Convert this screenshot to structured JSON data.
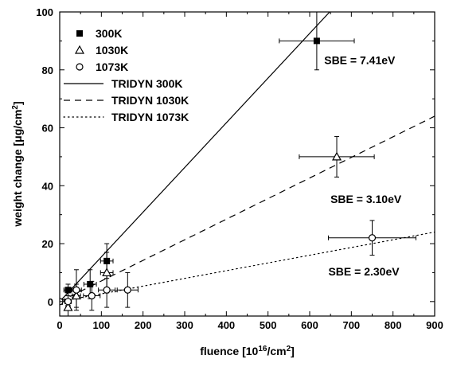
{
  "chart_data": {
    "type": "scatter",
    "xlabel": "fluence [10^16/cm^2]",
    "ylabel": "weight change [μg/cm^2]",
    "xlim": [
      0,
      900
    ],
    "ylim": [
      -5,
      100
    ],
    "xticks": [
      0,
      100,
      200,
      300,
      400,
      500,
      600,
      700,
      800,
      900
    ],
    "yticks": [
      0,
      20,
      40,
      60,
      80,
      100
    ],
    "grid": false,
    "legend_position": "top-left",
    "series": [
      {
        "name": "300K",
        "kind": "points",
        "marker": "filled-square",
        "points": [
          {
            "x": 0,
            "y": 0,
            "xerr": 0,
            "yerr": 0
          },
          {
            "x": 20,
            "y": 4,
            "xerr": 10,
            "yerr": 2
          },
          {
            "x": 73,
            "y": 6,
            "xerr": 15,
            "yerr": 5
          },
          {
            "x": 113,
            "y": 14,
            "xerr": 15,
            "yerr": 6
          },
          {
            "x": 617,
            "y": 90,
            "xerr": 90,
            "yerr": 10
          }
        ]
      },
      {
        "name": "1030K",
        "kind": "points",
        "marker": "open-triangle",
        "points": [
          {
            "x": 20,
            "y": -2,
            "xerr": 5,
            "yerr": 5
          },
          {
            "x": 40,
            "y": 2,
            "xerr": 10,
            "yerr": 4
          },
          {
            "x": 113,
            "y": 10,
            "xerr": 15,
            "yerr": 7
          },
          {
            "x": 665,
            "y": 50,
            "xerr": 90,
            "yerr": 7
          }
        ]
      },
      {
        "name": "1073K",
        "kind": "points",
        "marker": "open-circle",
        "points": [
          {
            "x": 0,
            "y": 0,
            "xerr": 0,
            "yerr": 0
          },
          {
            "x": 20,
            "y": 0,
            "xerr": 8,
            "yerr": 2
          },
          {
            "x": 40,
            "y": 4,
            "xerr": 12,
            "yerr": 7
          },
          {
            "x": 77,
            "y": 2,
            "xerr": 20,
            "yerr": 5
          },
          {
            "x": 113,
            "y": 4,
            "xerr": 20,
            "yerr": 6
          },
          {
            "x": 163,
            "y": 4,
            "xerr": 25,
            "yerr": 6
          },
          {
            "x": 750,
            "y": 22,
            "xerr": 105,
            "yerr": 6
          }
        ]
      },
      {
        "name": "TRIDYN 300K",
        "kind": "line",
        "dash": "solid",
        "points": [
          {
            "x": 0,
            "y": 0
          },
          {
            "x": 648,
            "y": 100
          }
        ]
      },
      {
        "name": "TRIDYN 1030K",
        "kind": "line",
        "dash": "dashed",
        "points": [
          {
            "x": 0,
            "y": 0
          },
          {
            "x": 900,
            "y": 64
          }
        ]
      },
      {
        "name": "TRIDYN 1073K",
        "kind": "line",
        "dash": "dotted",
        "points": [
          {
            "x": 0,
            "y": 0
          },
          {
            "x": 900,
            "y": 24
          }
        ]
      }
    ],
    "annotations": [
      {
        "text": "SBE = 7.41eV",
        "x": 720,
        "y": 82
      },
      {
        "text": "SBE = 3.10eV",
        "x": 735,
        "y": 34
      },
      {
        "text": "SBE = 2.30eV",
        "x": 730,
        "y": 9
      }
    ]
  }
}
